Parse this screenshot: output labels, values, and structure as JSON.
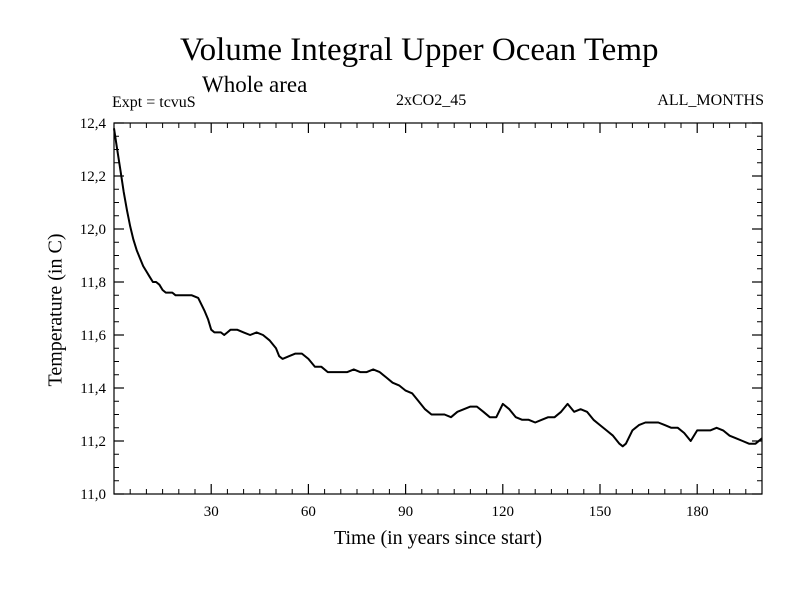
{
  "header": {
    "title": "Volume Integral Upper Ocean Temp",
    "subtitle": "Whole area",
    "expt": "Expt = tcvuS",
    "run": "2xCO2_45",
    "period": "ALL_MONTHS"
  },
  "chart_data": {
    "type": "line",
    "title": "Volume Integral Upper Ocean Temp",
    "subtitle": "Whole area",
    "xlabel": "Time (in years since start)",
    "ylabel": "Temperature (in C)",
    "xlim": [
      0,
      200
    ],
    "ylim": [
      11.0,
      12.4
    ],
    "xticks": [
      30,
      60,
      90,
      120,
      150,
      180
    ],
    "xtick_labels": [
      "30",
      "60",
      "90",
      "120",
      "150",
      "180"
    ],
    "yticks": [
      11.0,
      11.2,
      11.4,
      11.6,
      11.8,
      12.0,
      12.2,
      12.4
    ],
    "ytick_labels": [
      "11,0",
      "11,2",
      "11,4",
      "11,6",
      "11,8",
      "12,0",
      "12,2",
      "12,4"
    ],
    "grid": false,
    "series": [
      {
        "color": "#000000",
        "x": [
          0,
          1,
          2,
          3,
          4,
          5,
          6,
          7,
          8,
          9,
          10,
          11,
          12,
          13,
          14,
          15,
          16,
          17,
          18,
          19,
          20,
          22,
          24,
          26,
          28,
          29,
          30,
          31,
          32,
          33,
          34,
          35,
          36,
          37,
          38,
          40,
          42,
          44,
          46,
          48,
          50,
          51,
          52,
          54,
          56,
          58,
          60,
          62,
          64,
          66,
          68,
          70,
          72,
          74,
          76,
          78,
          80,
          82,
          84,
          86,
          88,
          90,
          92,
          94,
          96,
          98,
          100,
          102,
          104,
          106,
          108,
          110,
          112,
          114,
          116,
          118,
          120,
          122,
          124,
          126,
          128,
          130,
          132,
          134,
          136,
          138,
          140,
          142,
          144,
          146,
          148,
          150,
          152,
          154,
          156,
          157,
          158,
          160,
          162,
          164,
          166,
          168,
          170,
          172,
          174,
          176,
          178,
          180,
          182,
          184,
          186,
          188,
          190,
          192,
          194,
          196,
          198,
          200
        ],
        "y": [
          12.38,
          12.3,
          12.22,
          12.14,
          12.07,
          12.01,
          11.96,
          11.92,
          11.89,
          11.86,
          11.84,
          11.82,
          11.8,
          11.8,
          11.79,
          11.77,
          11.76,
          11.76,
          11.76,
          11.75,
          11.75,
          11.75,
          11.75,
          11.74,
          11.69,
          11.66,
          11.62,
          11.61,
          11.61,
          11.61,
          11.6,
          11.61,
          11.62,
          11.62,
          11.62,
          11.61,
          11.6,
          11.61,
          11.6,
          11.58,
          11.55,
          11.52,
          11.51,
          11.52,
          11.53,
          11.53,
          11.51,
          11.48,
          11.48,
          11.46,
          11.46,
          11.46,
          11.46,
          11.47,
          11.46,
          11.46,
          11.47,
          11.46,
          11.44,
          11.42,
          11.41,
          11.39,
          11.38,
          11.35,
          11.32,
          11.3,
          11.3,
          11.3,
          11.29,
          11.31,
          11.32,
          11.33,
          11.33,
          11.31,
          11.29,
          11.29,
          11.34,
          11.32,
          11.29,
          11.28,
          11.28,
          11.27,
          11.28,
          11.29,
          11.29,
          11.31,
          11.34,
          11.31,
          11.32,
          11.31,
          11.28,
          11.26,
          11.24,
          11.22,
          11.19,
          11.18,
          11.19,
          11.24,
          11.26,
          11.27,
          11.27,
          11.27,
          11.26,
          11.25,
          11.25,
          11.23,
          11.2,
          11.24,
          11.24,
          11.24,
          11.25,
          11.24,
          11.22,
          11.21,
          11.2,
          11.19,
          11.19,
          11.21
        ]
      }
    ]
  }
}
